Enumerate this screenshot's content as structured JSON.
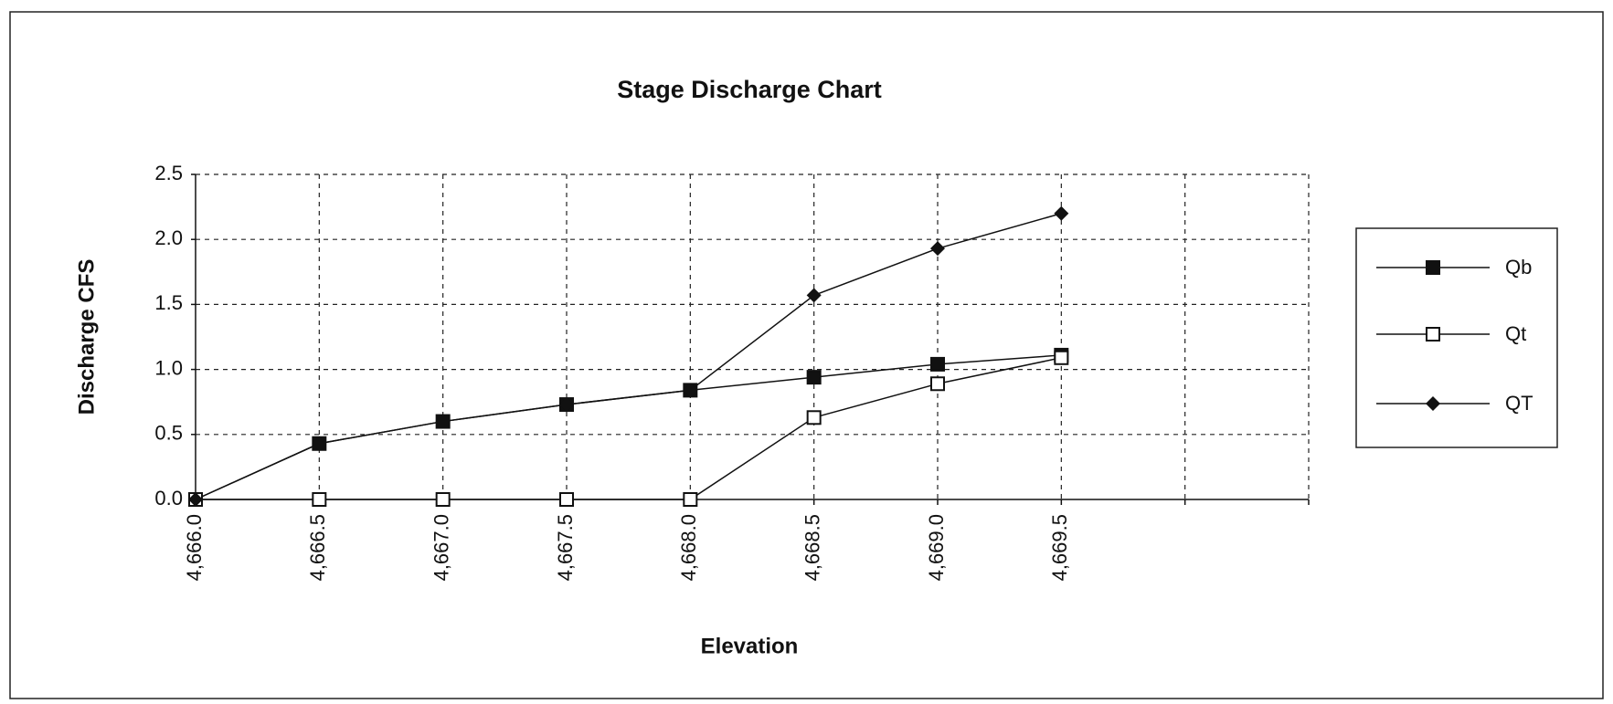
{
  "chart_data": {
    "type": "line",
    "title": "Stage Discharge Chart",
    "x_label": "Elevation",
    "y_label": "Discharge CFS",
    "categories": [
      "4,666.0",
      "4,666.5",
      "4,667.0",
      "4,667.5",
      "4,668.0",
      "4,668.5",
      "4,669.0",
      "4,669.5",
      null,
      null
    ],
    "series": [
      {
        "name": "Qb",
        "color": "#111111",
        "marker": "filled-square",
        "values": [
          0,
          0.43,
          0.6,
          0.73,
          0.84,
          0.94,
          1.04,
          1.11,
          null,
          null
        ]
      },
      {
        "name": "Qt",
        "color": "#111111",
        "marker": "open-square",
        "values": [
          0,
          0,
          0,
          0,
          0,
          0.63,
          0.89,
          1.09,
          null,
          null
        ]
      },
      {
        "name": "QT",
        "color": "#111111",
        "marker": "diamond",
        "values": [
          0,
          0.43,
          0.6,
          0.73,
          0.84,
          1.57,
          1.93,
          2.2,
          null,
          null
        ]
      }
    ],
    "ylim": [
      0,
      2.5
    ],
    "yticks": [
      {
        "value": 0,
        "label": "0.0"
      },
      0.5,
      {
        "value": 1,
        "label": "1.0"
      },
      1.5,
      {
        "value": 2,
        "label": "2.0"
      },
      2.5
    ],
    "grid": true,
    "legend": "right"
  }
}
